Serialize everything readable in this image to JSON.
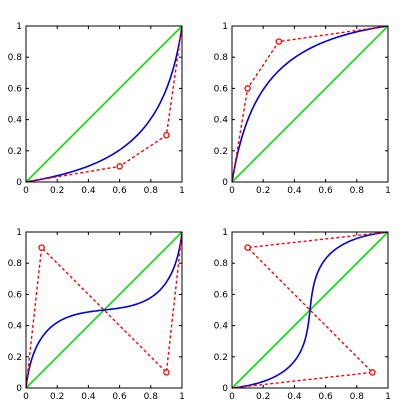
{
  "chart_data": [
    {
      "type": "line",
      "xlim": [
        0,
        1
      ],
      "ylim": [
        0,
        1
      ],
      "xticks": [
        "0",
        "0.2",
        "0.4",
        "0.6",
        "0.8",
        "1"
      ],
      "yticks": [
        "0",
        "0.2",
        "0.4",
        "0.6",
        "0.8",
        "1"
      ],
      "series": [
        {
          "role": "identity",
          "color": "#00dd00",
          "style": "solid",
          "x": [
            0,
            1
          ],
          "y": [
            0,
            1
          ]
        },
        {
          "role": "control-polygon",
          "color": "#ff0000",
          "style": "dashed",
          "marker": "open-circle",
          "x": [
            0,
            0.6,
            0.9,
            1
          ],
          "y": [
            0,
            0.1,
            0.3,
            1
          ],
          "marked": [
            1,
            2
          ]
        },
        {
          "role": "bezier-curve",
          "color": "#0000dd",
          "style": "solid",
          "control_x": [
            0,
            0.6,
            0.9,
            1
          ],
          "control_y": [
            0,
            0.1,
            0.3,
            1
          ]
        }
      ]
    },
    {
      "type": "line",
      "xlim": [
        0,
        1
      ],
      "ylim": [
        0,
        1
      ],
      "xticks": [
        "0",
        "0.2",
        "0.4",
        "0.6",
        "0.8",
        "1"
      ],
      "yticks": [
        "0",
        "0.2",
        "0.4",
        "0.6",
        "0.8",
        "1"
      ],
      "series": [
        {
          "role": "identity",
          "color": "#00dd00",
          "style": "solid",
          "x": [
            0,
            1
          ],
          "y": [
            0,
            1
          ]
        },
        {
          "role": "control-polygon",
          "color": "#ff0000",
          "style": "dashed",
          "marker": "open-circle",
          "x": [
            0,
            0.1,
            0.3,
            1
          ],
          "y": [
            0,
            0.6,
            0.9,
            1
          ],
          "marked": [
            1,
            2
          ]
        },
        {
          "role": "bezier-curve",
          "color": "#0000dd",
          "style": "solid",
          "control_x": [
            0,
            0.1,
            0.3,
            1
          ],
          "control_y": [
            0,
            0.6,
            0.9,
            1
          ]
        }
      ]
    },
    {
      "type": "line",
      "xlim": [
        0,
        1
      ],
      "ylim": [
        0,
        1
      ],
      "xticks": [
        "0",
        "0.2",
        "0.4",
        "0.6",
        "0.8",
        "1"
      ],
      "yticks": [
        "0",
        "0.2",
        "0.4",
        "0.6",
        "0.8",
        "1"
      ],
      "series": [
        {
          "role": "identity",
          "color": "#00dd00",
          "style": "solid",
          "x": [
            0,
            1
          ],
          "y": [
            0,
            1
          ]
        },
        {
          "role": "control-polygon",
          "color": "#ff0000",
          "style": "dashed",
          "marker": "open-circle",
          "x": [
            0,
            0.1,
            0.9,
            1
          ],
          "y": [
            0,
            0.9,
            0.1,
            1
          ],
          "marked": [
            1,
            2
          ]
        },
        {
          "role": "bezier-curve",
          "color": "#0000dd",
          "style": "solid",
          "control_x": [
            0,
            0.1,
            0.9,
            1
          ],
          "control_y": [
            0,
            0.9,
            0.1,
            1
          ]
        }
      ]
    },
    {
      "type": "line",
      "xlim": [
        0,
        1
      ],
      "ylim": [
        0,
        1
      ],
      "xticks": [
        "0",
        "0.2",
        "0.4",
        "0.6",
        "0.8",
        "1"
      ],
      "yticks": [
        "0",
        "0.2",
        "0.4",
        "0.6",
        "0.8",
        "1"
      ],
      "series": [
        {
          "role": "identity",
          "color": "#00dd00",
          "style": "solid",
          "x": [
            0,
            1
          ],
          "y": [
            0,
            1
          ]
        },
        {
          "role": "control-polygon",
          "color": "#ff0000",
          "style": "dashed",
          "marker": "open-circle",
          "x": [
            0,
            0.9,
            0.1,
            1
          ],
          "y": [
            0,
            0.1,
            0.9,
            1
          ],
          "marked": [
            1,
            2
          ]
        },
        {
          "role": "bezier-curve",
          "color": "#0000dd",
          "style": "solid",
          "control_x": [
            0,
            0.9,
            0.1,
            1
          ],
          "control_y": [
            0,
            0.1,
            0.9,
            1
          ]
        }
      ]
    }
  ]
}
